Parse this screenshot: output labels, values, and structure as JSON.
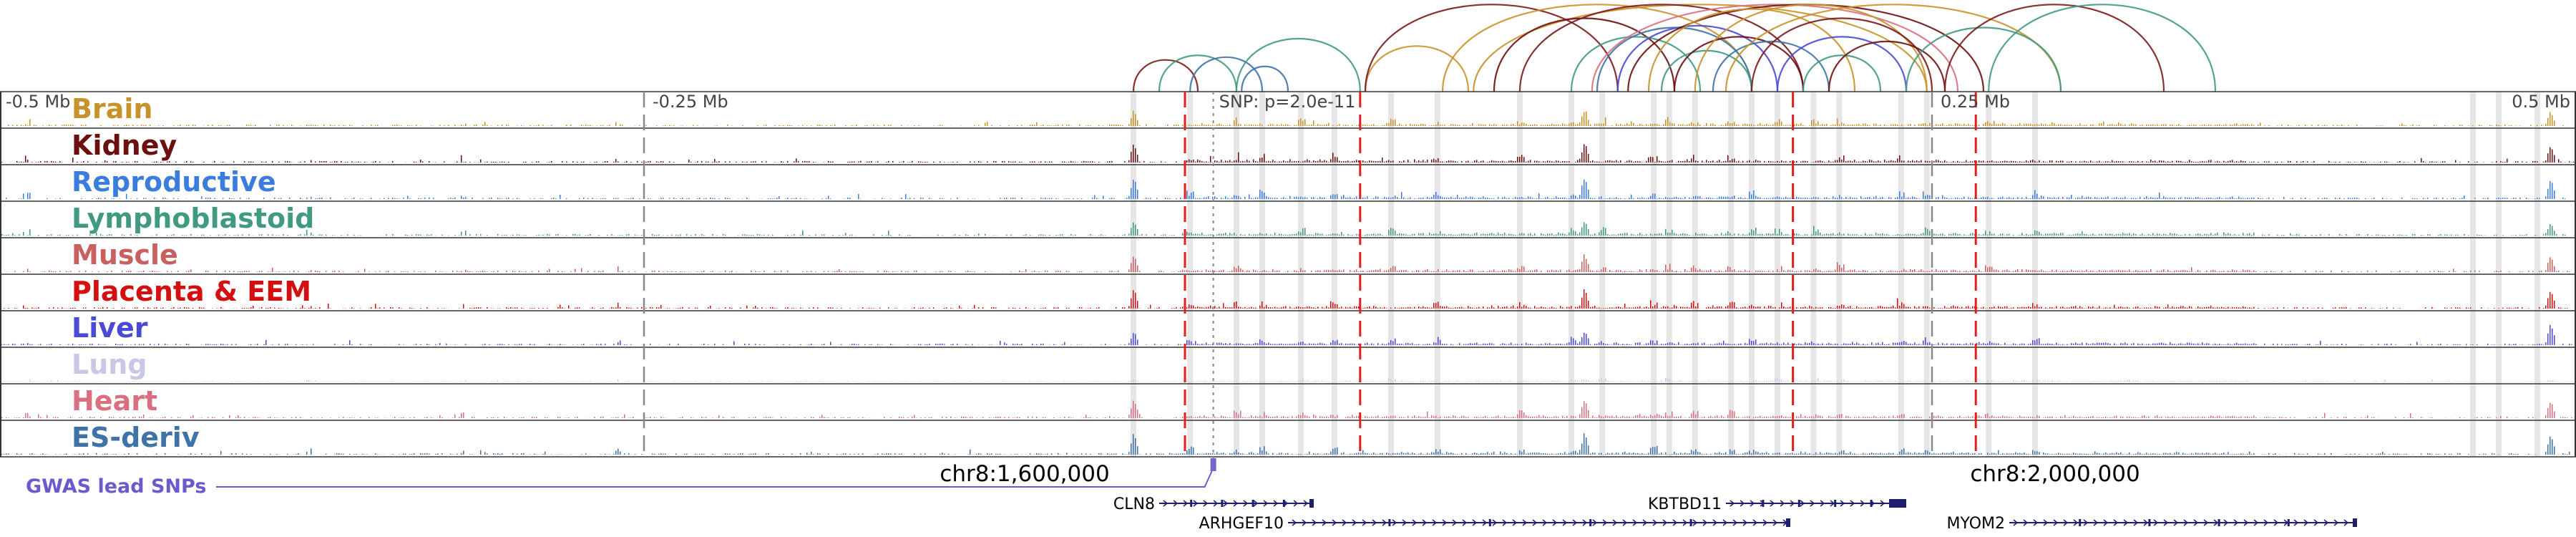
{
  "chart_data": {
    "type": "genome-browser-tracks",
    "axis": {
      "ticks": [
        "-0.5 Mb",
        "-0.25 Mb",
        "0.25 Mb",
        "0.5 Mb"
      ],
      "tick_values": [
        -0.5,
        -0.25,
        0.25,
        0.5
      ],
      "range_mb": [
        -0.5,
        0.5
      ],
      "unit": "Mb"
    },
    "snp_annotation": "SNP: p=2.0e-11",
    "tracks": [
      {
        "name": "Brain",
        "color": "#c8922a"
      },
      {
        "name": "Kidney",
        "color": "#6b0f0f"
      },
      {
        "name": "Reproductive",
        "color": "#3b7ddd"
      },
      {
        "name": "Lymphoblastoid",
        "color": "#3f9a80"
      },
      {
        "name": "Muscle",
        "color": "#c96060"
      },
      {
        "name": "Placenta & EEM",
        "color": "#d40f0f"
      },
      {
        "name": "Liver",
        "color": "#4a4ad6"
      },
      {
        "name": "Lung",
        "color": "#c8c8e6"
      },
      {
        "name": "Heart",
        "color": "#d87080"
      },
      {
        "name": "ES-deriv",
        "color": "#3f73a8"
      }
    ],
    "peaks_mb": [
      -0.06,
      0.115,
      0.49
    ],
    "lead_snp_mb": -0.029,
    "red_dashed_lines_mb": [
      -0.04,
      0.028,
      0.196,
      0.267
    ],
    "gray_dashed_lines_mb": [
      -0.25,
      0.25
    ],
    "highlight_bands_mb": [
      -0.06,
      -0.038,
      -0.02,
      -0.01,
      0.005,
      0.018,
      0.04,
      0.058,
      0.09,
      0.11,
      0.122,
      0.142,
      0.148,
      0.158,
      0.172,
      0.18,
      0.19,
      0.204,
      0.214,
      0.238,
      0.248,
      0.272,
      0.29,
      0.46,
      0.47,
      0.485
    ],
    "loops_mb": [
      {
        "start": -0.06,
        "end": -0.035,
        "color": "#7a1a1a"
      },
      {
        "start": -0.05,
        "end": -0.02,
        "color": "#3f9a80"
      },
      {
        "start": -0.038,
        "end": -0.01,
        "color": "#3f73a8"
      },
      {
        "start": -0.018,
        "end": 0.0,
        "color": "#3f73a8"
      },
      {
        "start": -0.02,
        "end": 0.028,
        "color": "#3f9a80"
      },
      {
        "start": 0.03,
        "end": 0.07,
        "color": "#c8922a"
      },
      {
        "start": 0.03,
        "end": 0.128,
        "color": "#7a1a1a"
      },
      {
        "start": 0.06,
        "end": 0.18,
        "color": "#c8922a"
      },
      {
        "start": 0.072,
        "end": 0.248,
        "color": "#c8922a"
      },
      {
        "start": 0.08,
        "end": 0.15,
        "color": "#6b0f0f"
      },
      {
        "start": 0.09,
        "end": 0.2,
        "color": "#7a1a1a"
      },
      {
        "start": 0.11,
        "end": 0.16,
        "color": "#3f9a80"
      },
      {
        "start": 0.118,
        "end": 0.26,
        "color": "#d87080"
      },
      {
        "start": 0.12,
        "end": 0.18,
        "color": "#3f73a8"
      },
      {
        "start": 0.128,
        "end": 0.19,
        "color": "#4a4ad6"
      },
      {
        "start": 0.132,
        "end": 0.27,
        "color": "#6b0f0f"
      },
      {
        "start": 0.14,
        "end": 0.22,
        "color": "#c8922a"
      },
      {
        "start": 0.145,
        "end": 0.18,
        "color": "#3f9a80"
      },
      {
        "start": 0.15,
        "end": 0.2,
        "color": "#6b0f0f"
      },
      {
        "start": 0.158,
        "end": 0.248,
        "color": "#c8922a"
      },
      {
        "start": 0.165,
        "end": 0.21,
        "color": "#3f73a8"
      },
      {
        "start": 0.17,
        "end": 0.3,
        "color": "#c8922a"
      },
      {
        "start": 0.18,
        "end": 0.25,
        "color": "#7a1a1a"
      },
      {
        "start": 0.19,
        "end": 0.24,
        "color": "#4a4ad6"
      },
      {
        "start": 0.2,
        "end": 0.23,
        "color": "#3f9a80"
      },
      {
        "start": 0.21,
        "end": 0.255,
        "color": "#6b0f0f"
      },
      {
        "start": 0.24,
        "end": 0.3,
        "color": "#3f9a80"
      },
      {
        "start": 0.255,
        "end": 0.34,
        "color": "#7a1a1a"
      },
      {
        "start": 0.272,
        "end": 0.36,
        "color": "#3f9a80"
      }
    ],
    "coordinate_labels": [
      {
        "text": "chr8:1,600,000",
        "mb": -0.1
      },
      {
        "text": "chr8:2,000,000",
        "mb": 0.3
      }
    ],
    "gwas_label": "GWAS lead SNPs",
    "genes": [
      {
        "name": "CLN8",
        "start_mb": -0.05,
        "end_mb": 0.01,
        "row": 0
      },
      {
        "name": "ARHGEF10",
        "start_mb": 0.0,
        "end_mb": 0.195,
        "row": 1
      },
      {
        "name": "KBTBD11",
        "start_mb": 0.17,
        "end_mb": 0.24,
        "row": 0
      },
      {
        "name": "MYOM2",
        "start_mb": 0.28,
        "end_mb": 0.415,
        "row": 1
      }
    ]
  }
}
